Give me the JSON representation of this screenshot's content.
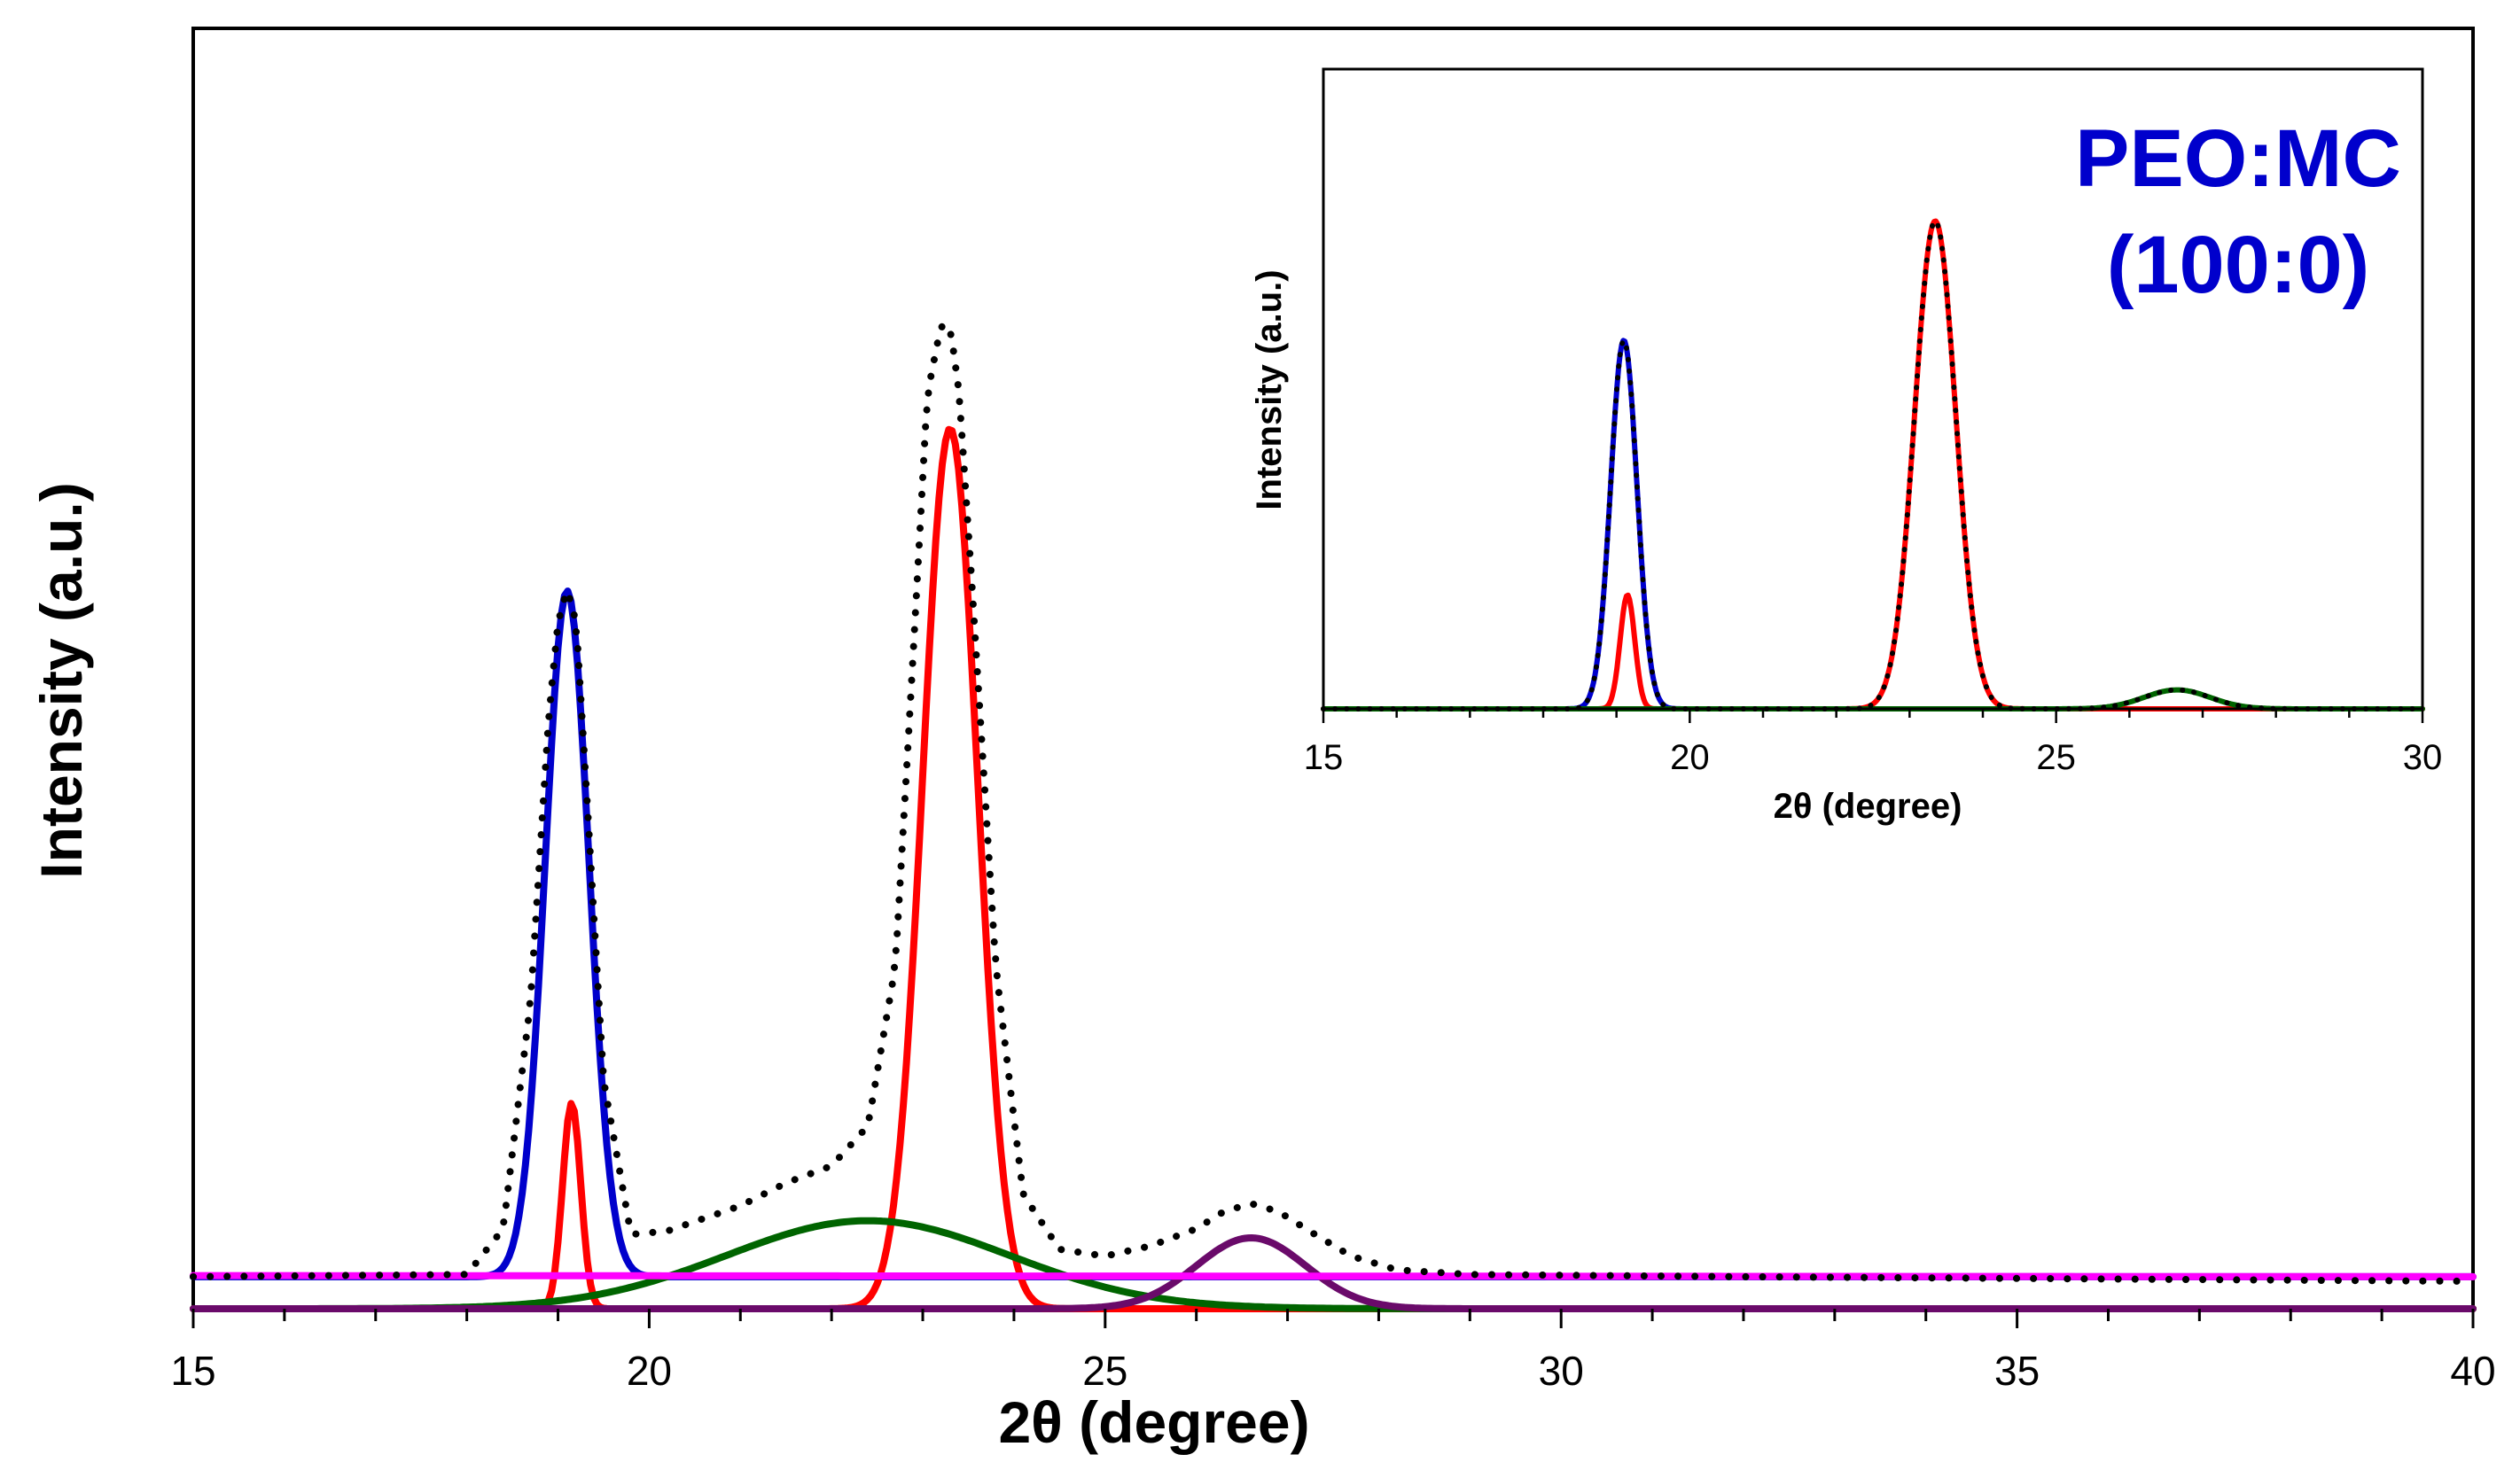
{
  "chart_data": [
    {
      "type": "line",
      "role": "main",
      "title": "",
      "xlabel": "2θ (degree)",
      "ylabel": "Intensity (a.u.)",
      "xlim": [
        15,
        40
      ],
      "ylim": [
        0,
        1.12
      ],
      "xticks": [
        15,
        20,
        25,
        30,
        35,
        40
      ],
      "xtick_labels": [
        "15",
        "20",
        "25",
        "30",
        "35",
        "40"
      ],
      "yticks": [],
      "grid": false,
      "colors": {
        "frame": "#000000",
        "dotted": "#000000",
        "blue": "#0000cc",
        "red": "#ff0000",
        "green": "#006400",
        "purple": "#6a0a6a",
        "magenta": "#ff00ff"
      },
      "series": [
        {
          "name": "experimental (dotted)",
          "style": "dotted",
          "color": "#000000",
          "x": [
            15,
            18,
            18.4,
            18.7,
            18.9,
            19.0,
            19.1,
            19.2,
            19.3,
            19.5,
            19.8,
            20.2,
            21,
            21.5,
            22,
            22.4,
            22.7,
            22.9,
            23.05,
            23.2,
            23.3,
            23.4,
            23.55,
            23.8,
            24.1,
            24.5,
            25,
            25.5,
            26,
            26.3,
            26.6,
            26.9,
            27.3,
            27.7,
            28.2,
            29,
            32,
            36,
            40
          ],
          "values": [
            0.028,
            0.03,
            0.07,
            0.27,
            0.52,
            0.6,
            0.63,
            0.6,
            0.47,
            0.2,
            0.065,
            0.068,
            0.09,
            0.11,
            0.125,
            0.16,
            0.3,
            0.58,
            0.8,
            0.86,
            0.86,
            0.8,
            0.62,
            0.3,
            0.1,
            0.052,
            0.046,
            0.055,
            0.07,
            0.085,
            0.092,
            0.085,
            0.065,
            0.046,
            0.034,
            0.03,
            0.028,
            0.026,
            0.024
          ]
        },
        {
          "name": "peak ~19.1 (blue)",
          "style": "solid",
          "color": "#0000cc",
          "baseline": 0.028,
          "peaks": [
            {
              "center": 19.1,
              "height": 0.6,
              "sigma": 0.24
            }
          ]
        },
        {
          "name": "peak ~19.1 (red)",
          "style": "solid",
          "color": "#ff0000",
          "peaks": [
            {
              "center": 19.15,
              "height": 0.18,
              "sigma": 0.1
            }
          ]
        },
        {
          "name": "peak ~23.3 (red)",
          "style": "solid",
          "color": "#ff0000",
          "peaks": [
            {
              "center": 23.3,
              "height": 0.77,
              "sigma": 0.3
            }
          ]
        },
        {
          "name": "amorphous halo ~22.4 (green)",
          "style": "solid",
          "color": "#006400",
          "peaks": [
            {
              "center": 22.4,
              "height": 0.077,
              "sigma": 1.55
            }
          ]
        },
        {
          "name": "peak ~26.6 (purple)",
          "style": "solid",
          "color": "#6a0a6a",
          "peaks": [
            {
              "center": 26.6,
              "height": 0.062,
              "sigma": 0.6
            }
          ]
        },
        {
          "name": "baseline (magenta)",
          "style": "solid",
          "color": "#ff00ff",
          "x": [
            15,
            40
          ],
          "values": [
            0.029,
            0.028
          ]
        }
      ]
    },
    {
      "type": "line",
      "role": "inset",
      "title": "",
      "annotation": [
        "PEO:MC",
        "(100:0)"
      ],
      "xlabel": "2θ (degree)",
      "ylabel": "Intensity (a.u.)",
      "xlim": [
        15,
        30
      ],
      "ylim": [
        0,
        1.18
      ],
      "xticks": [
        15,
        20,
        25,
        30
      ],
      "xtick_labels": [
        "15",
        "20",
        "25",
        "30"
      ],
      "yticks": [],
      "grid": false,
      "series": [
        {
          "name": "inset peak ~19.1 (blue)",
          "style": "solid",
          "color": "#0000cc",
          "peaks": [
            {
              "center": 19.1,
              "height": 0.68,
              "sigma": 0.18
            }
          ]
        },
        {
          "name": "inset peak ~19.1 (red)",
          "style": "solid",
          "color": "#ff0000",
          "peaks": [
            {
              "center": 19.15,
              "height": 0.21,
              "sigma": 0.1
            }
          ]
        },
        {
          "name": "inset peak ~23.3 (red)",
          "style": "solid",
          "color": "#ff0000",
          "peaks": [
            {
              "center": 23.35,
              "height": 0.9,
              "sigma": 0.28
            }
          ]
        },
        {
          "name": "inset peak ~26.6 (green)",
          "style": "solid",
          "color": "#006400",
          "peaks": [
            {
              "center": 26.65,
              "height": 0.035,
              "sigma": 0.45
            }
          ]
        },
        {
          "name": "inset experimental (dotted)",
          "style": "dotted",
          "color": "#000000",
          "peaks": [
            {
              "center": 19.1,
              "height": 0.68,
              "sigma": 0.18
            },
            {
              "center": 23.35,
              "height": 0.9,
              "sigma": 0.28
            },
            {
              "center": 26.65,
              "height": 0.035,
              "sigma": 0.45
            }
          ]
        }
      ]
    }
  ]
}
